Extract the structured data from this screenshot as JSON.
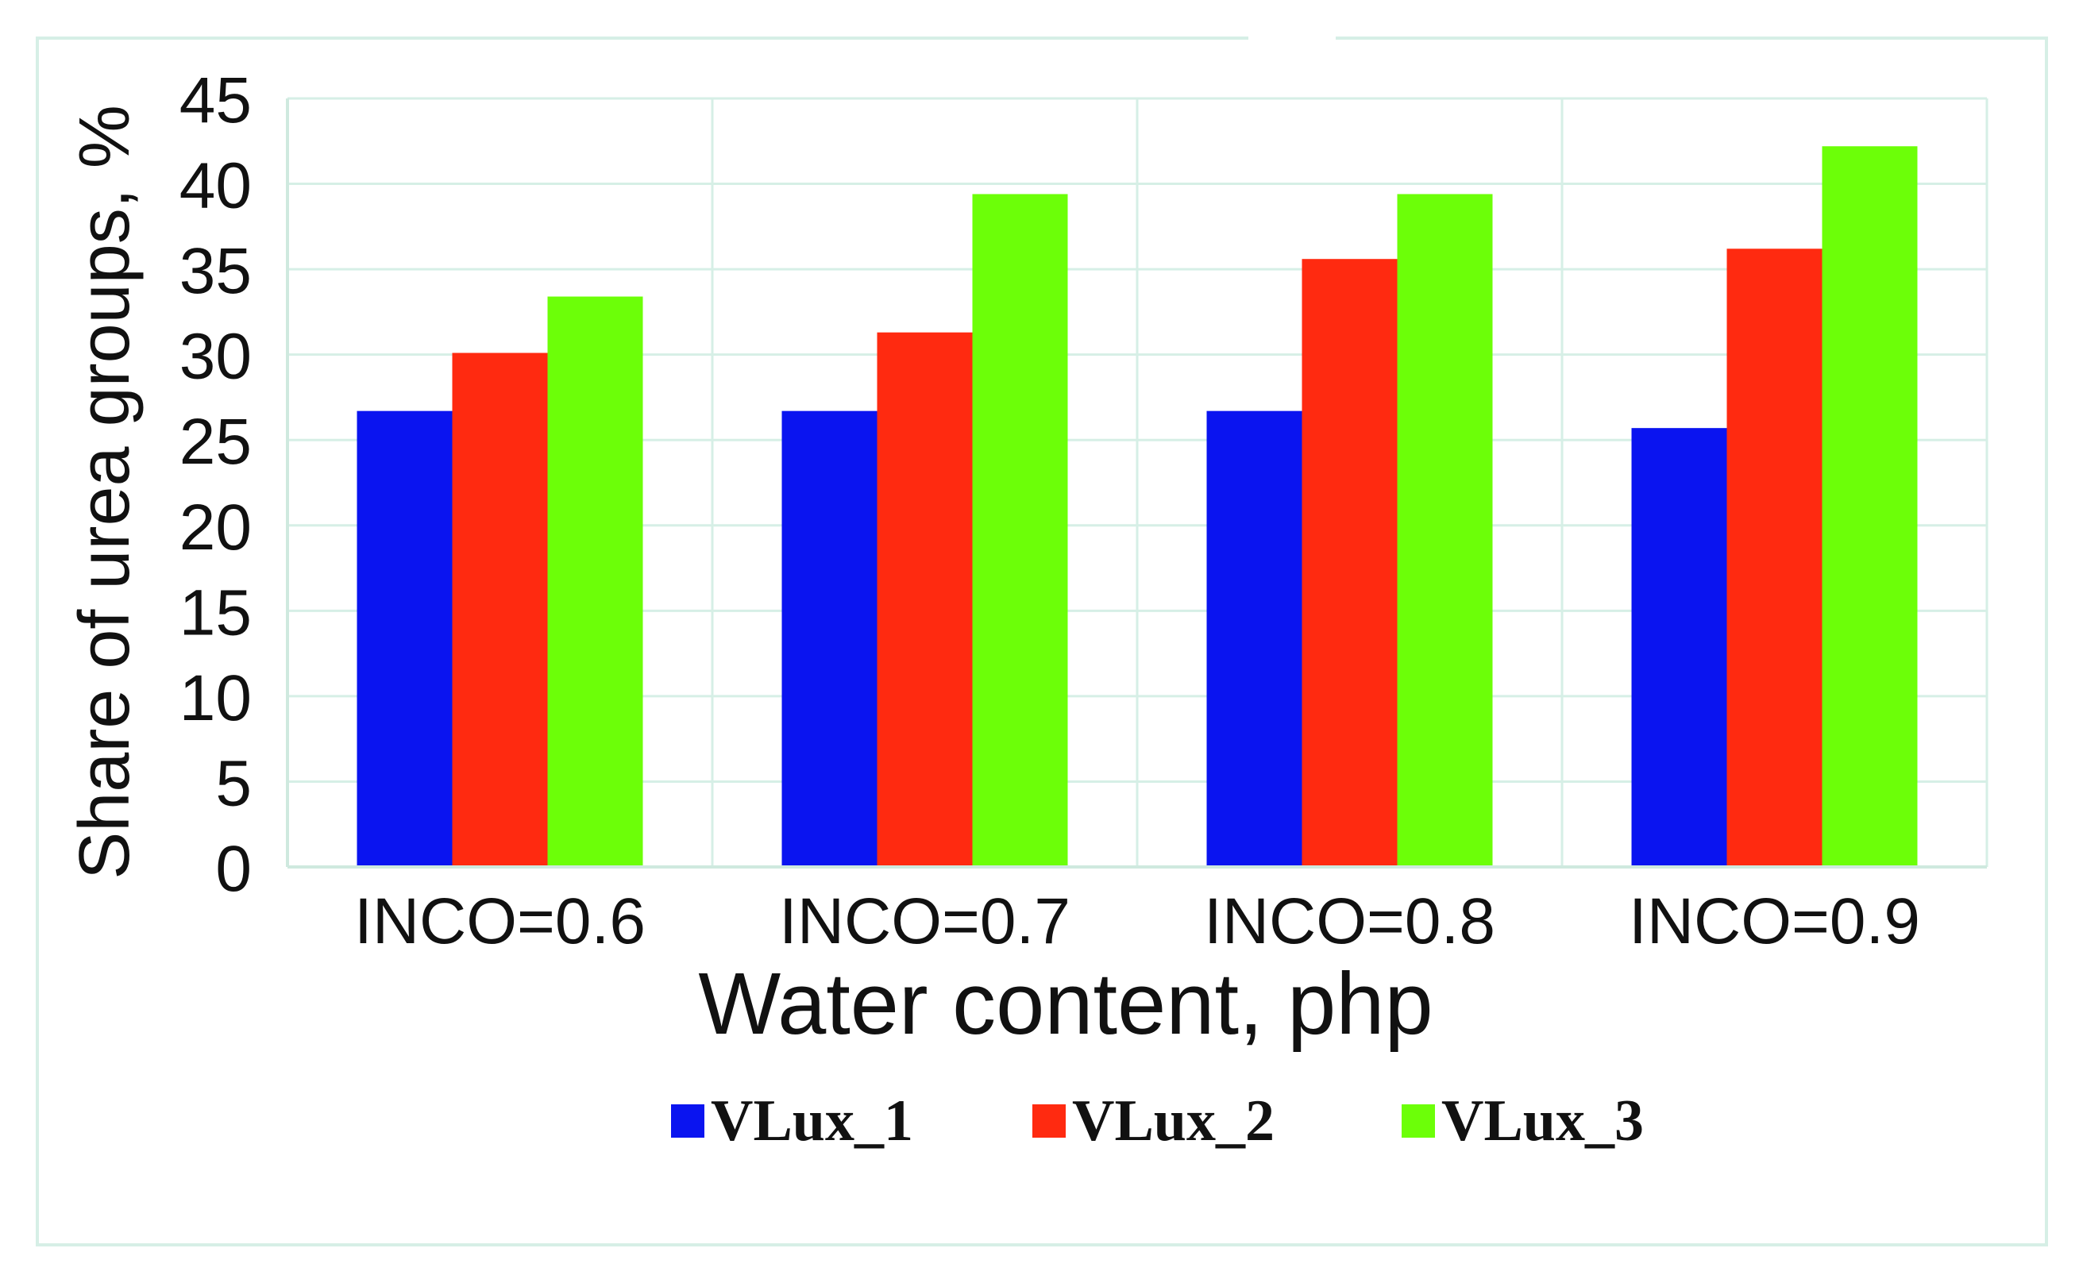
{
  "chart_data": {
    "type": "bar",
    "title": "",
    "xlabel": "Water content, php",
    "ylabel": "Share of urea groups, %",
    "categories": [
      "INCO=0.6",
      "INCO=0.7",
      "INCO=0.8",
      "INCO=0.9"
    ],
    "series": [
      {
        "name": "VLux_1",
        "color": "#0a14f0",
        "values": [
          26.7,
          26.7,
          26.7,
          25.7
        ]
      },
      {
        "name": "VLux_2",
        "color": "#ff2a10",
        "values": [
          30.1,
          31.3,
          35.6,
          36.2
        ]
      },
      {
        "name": "VLux_3",
        "color": "#6cff08",
        "values": [
          33.4,
          39.4,
          39.4,
          42.2
        ]
      }
    ],
    "ylim": [
      0,
      45
    ],
    "yticks": [
      0,
      5,
      10,
      15,
      20,
      25,
      30,
      35,
      40,
      45
    ],
    "grid": true,
    "legend_position": "bottom"
  }
}
